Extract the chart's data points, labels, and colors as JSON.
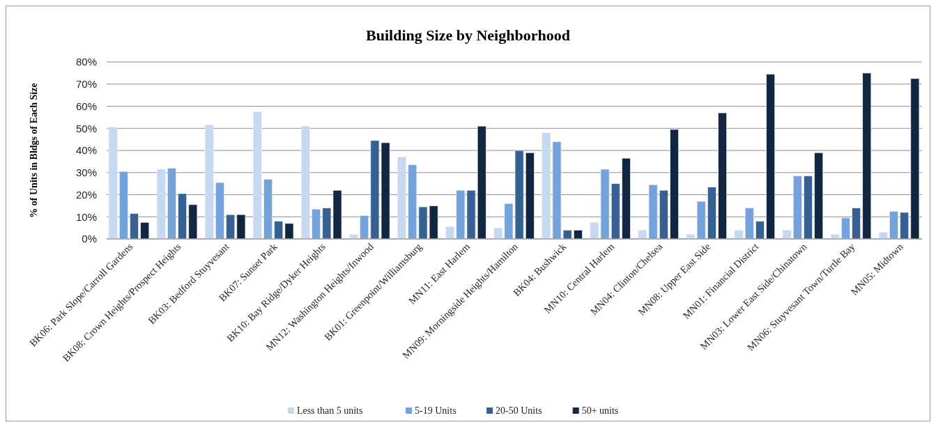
{
  "chart_data": {
    "type": "bar",
    "title": "Building Size by Neighborhood",
    "ylabel": "% of Units in Bldgs of Each Size",
    "categories": [
      "BK06: Park Slope/Carroll Gardens",
      "BK08: Crown Heights/Prospect Heights",
      "BK03: Bedford Stuyvesant",
      "BK07: Sunset Park",
      "BK10: Bay Ridge/Dyker Heights",
      "MN12: Washington Heights/Inwood",
      "BK01: Greenpoint/Williamsburg",
      "MN11: East Harlem",
      "MN09: Morningside Heights/Hamilton",
      "BK04: Bushwick",
      "MN10: Central Harlem",
      "MN04: Clinton/Chelsea",
      "MN08: Upper East Side",
      "MN01: Financial District",
      "MN03: Lower East Side/Chinatown",
      "MN06: Stuyvesant Town/Turtle Bay",
      "MN05: Midtown"
    ],
    "series": [
      {
        "name": "Less than 5 units",
        "color": "#c6d9f1",
        "values": [
          50.5,
          31.5,
          51.5,
          57.5,
          51,
          2,
          37,
          5.5,
          5,
          48,
          7.5,
          4,
          2,
          4,
          4,
          2,
          3
        ]
      },
      {
        "name": "5-19 Units",
        "color": "#74a3dc",
        "values": [
          30.5,
          32,
          25.5,
          27,
          13.5,
          10.5,
          33.5,
          22,
          16,
          44,
          31.5,
          24.5,
          17,
          14,
          28.5,
          9.5,
          12.5
        ]
      },
      {
        "name": "20-50 Units",
        "color": "#366092",
        "values": [
          11.5,
          20.5,
          11,
          8,
          14,
          44.5,
          14.5,
          22,
          40,
          4,
          25,
          22,
          23.5,
          8,
          28.5,
          14,
          12
        ]
      },
      {
        "name": "50+ units",
        "color": "#122641",
        "values": [
          7.5,
          15.5,
          11,
          7,
          22,
          43.5,
          15,
          51,
          39,
          4,
          36.5,
          49.5,
          57,
          74.5,
          39,
          75,
          72.5
        ]
      }
    ],
    "ylim": [
      0,
      80
    ],
    "yticks": [
      {
        "value": 0,
        "label": "0%"
      },
      {
        "value": 10,
        "label": "10%"
      },
      {
        "value": 20,
        "label": "20%"
      },
      {
        "value": 30,
        "label": "30%"
      },
      {
        "value": 40,
        "label": "40%"
      },
      {
        "value": 50,
        "label": "50%"
      },
      {
        "value": 60,
        "label": "60%"
      },
      {
        "value": 70,
        "label": "70%"
      },
      {
        "value": 80,
        "label": "80%"
      }
    ],
    "grid": "y",
    "legend": "bottom"
  }
}
